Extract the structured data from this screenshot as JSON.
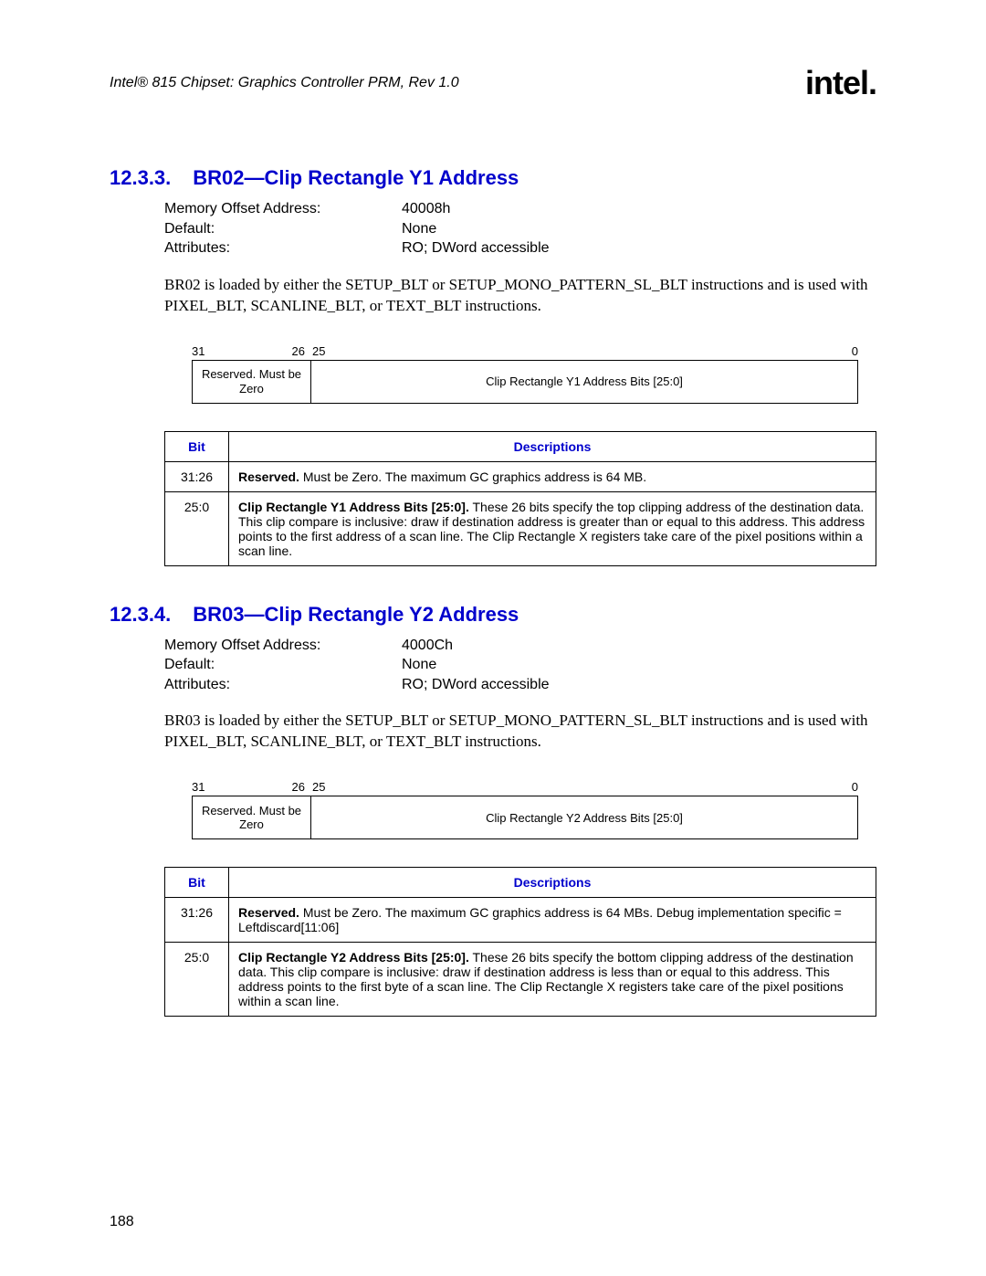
{
  "header": {
    "doc_title": "Intel® 815 Chipset: Graphics Controller PRM, Rev 1.0",
    "logo_text": "intel."
  },
  "sections": [
    {
      "number": "12.3.3.",
      "title": "BR02—Clip Rectangle Y1 Address",
      "info": {
        "memory_offset_label": "Memory Offset Address:",
        "memory_offset_value": "40008h",
        "default_label": "Default:",
        "default_value": "None",
        "attributes_label": "Attributes:",
        "attributes_value": "RO; DWord accessible"
      },
      "para": "BR02 is loaded by either the SETUP_BLT or SETUP_MONO_PATTERN_SL_BLT instructions and is used with PIXEL_BLT, SCANLINE_BLT, or TEXT_BLT instructions.",
      "bitfield": {
        "tick_31": "31",
        "tick_26": "26",
        "tick_25": "25",
        "tick_0": "0",
        "left_text": "Reserved. Must be Zero",
        "right_text": "Clip Rectangle Y1 Address Bits [25:0]"
      },
      "table": {
        "head_bit": "Bit",
        "head_desc": "Descriptions",
        "rows": [
          {
            "bit": "31:26",
            "bold": "Reserved.",
            "rest": " Must be Zero. The maximum GC graphics address is 64 MB."
          },
          {
            "bit": "25:0",
            "bold": "Clip Rectangle Y1 Address Bits [25:0].",
            "rest": " These 26 bits specify the top clipping address of the destination data. This clip compare is inclusive: draw if destination address is greater than or equal to this address. This address points to the first address of a scan line. The Clip Rectangle X registers take care of the pixel positions within a scan line."
          }
        ]
      }
    },
    {
      "number": "12.3.4.",
      "title": "BR03—Clip Rectangle Y2 Address",
      "info": {
        "memory_offset_label": "Memory Offset Address:",
        "memory_offset_value": "4000Ch",
        "default_label": "Default:",
        "default_value": "None",
        "attributes_label": "Attributes:",
        "attributes_value": "RO; DWord accessible"
      },
      "para": "BR03 is loaded by either the SETUP_BLT or SETUP_MONO_PATTERN_SL_BLT instructions and is used with PIXEL_BLT, SCANLINE_BLT, or TEXT_BLT instructions.",
      "bitfield": {
        "tick_31": "31",
        "tick_26": "26",
        "tick_25": "25",
        "tick_0": "0",
        "left_text": "Reserved. Must be Zero",
        "right_text": "Clip Rectangle Y2 Address Bits [25:0]"
      },
      "table": {
        "head_bit": "Bit",
        "head_desc": "Descriptions",
        "rows": [
          {
            "bit": "31:26",
            "bold": "Reserved.",
            "rest": " Must be Zero. The maximum GC graphics address is 64 MBs. Debug implementation specific = Leftdiscard[11:06]"
          },
          {
            "bit": "25:0",
            "bold": "Clip Rectangle Y2 Address Bits [25:0].",
            "rest": " These 26 bits specify the bottom clipping address of the destination data. This clip compare is inclusive: draw if destination address is less than or equal to this address. This address points to the first byte of a scan line. The Clip Rectangle X registers take care of the pixel positions within a scan line."
          }
        ]
      }
    }
  ],
  "page_number": "188"
}
